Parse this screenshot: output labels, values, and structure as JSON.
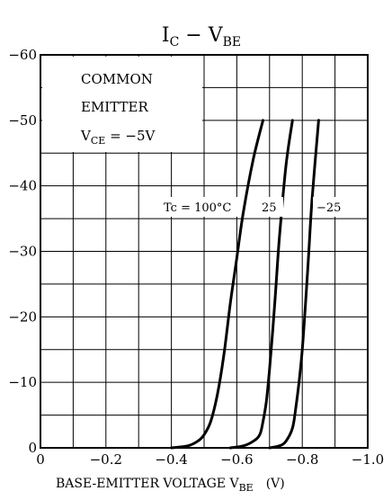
{
  "chart_data": {
    "type": "line",
    "title": {
      "main": "I",
      "sub1": "C",
      "dash": " − V",
      "sub2": "BE"
    },
    "xlabel": {
      "main": "BASE-EMITTER VOLTAGE  V",
      "sub": "BE",
      "unit": "(V)"
    },
    "ylabel": "",
    "xlim": [
      0,
      -1.0
    ],
    "ylim": [
      0,
      -60
    ],
    "x_ticks": [
      {
        "v": 0,
        "label": "0"
      },
      {
        "v": -0.2,
        "label": "−0.2"
      },
      {
        "v": -0.4,
        "label": "−0.4"
      },
      {
        "v": -0.6,
        "label": "−0.6"
      },
      {
        "v": -0.8,
        "label": "−0.8"
      },
      {
        "v": -1.0,
        "label": "−1.0"
      }
    ],
    "y_ticks": [
      {
        "v": 0,
        "label": "0"
      },
      {
        "v": -10,
        "label": "−10"
      },
      {
        "v": -20,
        "label": "−20"
      },
      {
        "v": -30,
        "label": "−30"
      },
      {
        "v": -40,
        "label": "−40"
      },
      {
        "v": -50,
        "label": "−50"
      },
      {
        "v": -60,
        "label": "−60"
      }
    ],
    "grid": true,
    "legend_box": {
      "line1": "COMMON",
      "line2": "EMITTER",
      "line3_main": "V",
      "line3_sub": "CE",
      "line3_rest": " = −5V"
    },
    "series": [
      {
        "name": "Tc = 100°C",
        "label": "Tc = 100°C",
        "x": [
          -0.4,
          -0.45,
          -0.48,
          -0.5,
          -0.52,
          -0.54,
          -0.56,
          -0.58,
          -0.6,
          -0.62,
          -0.65,
          -0.68
        ],
        "y": [
          0,
          -0.3,
          -1,
          -2,
          -4,
          -8,
          -14,
          -22,
          -29,
          -36,
          -44,
          -50
        ]
      },
      {
        "name": "25",
        "label": "25",
        "x": [
          -0.58,
          -0.62,
          -0.65,
          -0.67,
          -0.68,
          -0.69,
          -0.7,
          -0.71,
          -0.72,
          -0.73,
          -0.75,
          -0.77
        ],
        "y": [
          0,
          -0.3,
          -1,
          -2,
          -4,
          -7,
          -12,
          -18,
          -25,
          -32,
          -43,
          -50
        ]
      },
      {
        "name": "−25",
        "label": "−25",
        "x": [
          -0.7,
          -0.73,
          -0.75,
          -0.77,
          -0.78,
          -0.79,
          -0.8,
          -0.81,
          -0.82,
          -0.83,
          -0.85
        ],
        "y": [
          0,
          -0.3,
          -1,
          -3,
          -6,
          -10,
          -15,
          -22,
          -30,
          -38,
          -50
        ]
      }
    ]
  }
}
